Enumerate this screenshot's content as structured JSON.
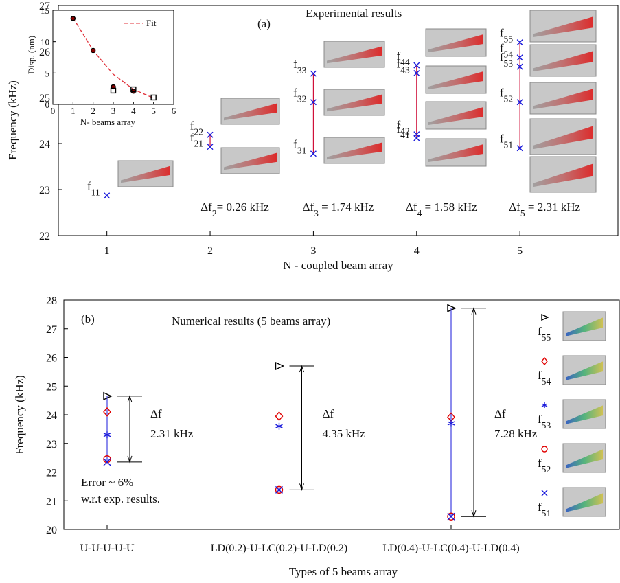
{
  "chart_data": [
    {
      "type": "scatter",
      "panel_label": "(a)",
      "title": "Experimental results",
      "x_label": "N - coupled beam array",
      "y_label": "Frequency (kHz)",
      "xlim": [
        0.53,
        5.95
      ],
      "xticks": [
        1,
        2,
        3,
        4,
        5
      ],
      "ylim": [
        22,
        27
      ],
      "yticks": [
        22,
        23,
        24,
        25,
        26,
        27
      ],
      "color": "#1a1adb",
      "line_color": "#d0103a",
      "x": [
        1,
        2,
        2,
        3,
        3,
        3,
        4,
        4,
        4,
        4,
        5,
        5,
        5,
        5,
        5
      ],
      "values": [
        22.87,
        23.93,
        24.19,
        23.78,
        24.9,
        25.52,
        24.12,
        24.2,
        25.53,
        25.7,
        23.9,
        24.9,
        25.67,
        25.87,
        26.2
      ],
      "point_labels": [
        "f11",
        "f21",
        "f22",
        "f31",
        "f32",
        "f33",
        "f41",
        "f42",
        "f43",
        "f44",
        "f51",
        "f52",
        "f53",
        "f54",
        "f55"
      ],
      "delta_labels": [
        "Δf2= 0.26 kHz",
        "Δf3 = 1.74 kHz",
        "Δf4 = 1.58 kHz",
        "Δf5 = 2.31 kHz"
      ]
    },
    {
      "type": "line",
      "x_label": "N- beams array",
      "y_label": "Disp. (nm)",
      "xlim": [
        0,
        6
      ],
      "xticks": [
        0,
        1,
        2,
        3,
        4,
        5,
        6
      ],
      "ylim": [
        0,
        15
      ],
      "yticks": [
        0,
        5,
        10,
        15
      ],
      "x": [
        1,
        2,
        3,
        4,
        5
      ],
      "series": [
        {
          "name": "Fit",
          "color": "#e0303a",
          "dashed": true,
          "values": [
            13.8,
            8.6,
            4.8,
            2.4,
            1.0
          ]
        },
        {
          "color": "#8b0000",
          "marker": "dot",
          "values": [
            13.7,
            8.6,
            2.8,
            2.1,
            null
          ]
        },
        {
          "color": "#000000",
          "marker": "square",
          "values": [
            null,
            null,
            2.2,
            2.4,
            1.1
          ]
        }
      ]
    },
    {
      "type": "scatter",
      "panel_label": "(b)",
      "title": "Numerical results (5 beams array)",
      "x_label": "Types of 5 beams array",
      "y_label": "Frequency (kHz)",
      "categories": [
        "U-U-U-U-U",
        "LD(0.2)-U-LC(0.2)-U-LD(0.2)",
        "LD(0.4)-U-LC(0.4)-U-LD(0.4)"
      ],
      "ylim": [
        20,
        28
      ],
      "yticks": [
        20,
        21,
        22,
        23,
        24,
        25,
        26,
        27,
        28
      ],
      "line_color": "#1a1adb",
      "series": [
        {
          "name": "f55",
          "color": "#000000",
          "marker": "triangle",
          "values": [
            24.65,
            25.7,
            27.72
          ]
        },
        {
          "name": "f54",
          "color": "#e00000",
          "marker": "diamond",
          "values": [
            24.1,
            23.95,
            23.92
          ]
        },
        {
          "name": "f53",
          "color": "#1a1adb",
          "marker": "star",
          "values": [
            23.3,
            23.6,
            23.7
          ]
        },
        {
          "name": "f52",
          "color": "#e00000",
          "marker": "circle",
          "values": [
            22.45,
            21.38,
            20.45
          ]
        },
        {
          "name": "f51",
          "color": "#1a1adb",
          "marker": "x",
          "values": [
            22.35,
            21.38,
            20.45
          ]
        }
      ],
      "delta_labels": [
        [
          "Δf",
          "2.31 kHz"
        ],
        [
          "Δf",
          "4.35 kHz"
        ],
        [
          "Δf",
          "7.28 kHz"
        ]
      ],
      "notes": [
        "Error ~ 6%",
        "w.r.t exp. results."
      ]
    }
  ]
}
